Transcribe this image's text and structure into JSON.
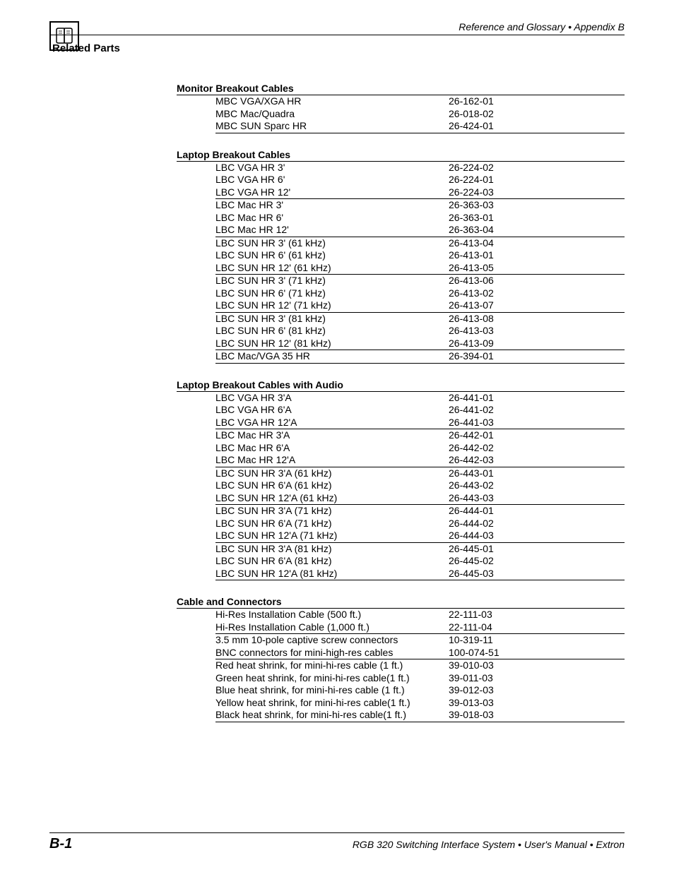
{
  "header": {
    "text": "Reference and Glossary • Appendix B"
  },
  "sectionTitle": "Related Parts",
  "tables": [
    {
      "heading": "Monitor Breakout Cables",
      "groups": [
        [
          {
            "name": "MBC VGA/XGA HR",
            "num": "26-162-01"
          },
          {
            "name": "MBC Mac/Quadra",
            "num": "26-018-02"
          },
          {
            "name": "MBC SUN Sparc HR",
            "num": "26-424-01"
          }
        ]
      ]
    },
    {
      "heading": "Laptop Breakout Cables",
      "groups": [
        [
          {
            "name": "LBC VGA HR 3'",
            "num": "26-224-02"
          },
          {
            "name": "LBC VGA HR 6'",
            "num": "26-224-01"
          },
          {
            "name": "LBC VGA HR 12'",
            "num": "26-224-03"
          }
        ],
        [
          {
            "name": "LBC Mac HR 3'",
            "num": "26-363-03"
          },
          {
            "name": "LBC Mac HR 6'",
            "num": "26-363-01"
          },
          {
            "name": "LBC Mac HR 12'",
            "num": "26-363-04"
          }
        ],
        [
          {
            "name": "LBC SUN HR 3' (61 kHz)",
            "num": "26-413-04"
          },
          {
            "name": "LBC SUN HR 6' (61 kHz)",
            "num": "26-413-01"
          },
          {
            "name": "LBC SUN HR 12' (61 kHz)",
            "num": "26-413-05"
          }
        ],
        [
          {
            "name": "LBC SUN HR 3' (71 kHz)",
            "num": "26-413-06"
          },
          {
            "name": "LBC SUN HR 6' (71 kHz)",
            "num": "26-413-02"
          },
          {
            "name": "LBC SUN HR 12' (71 kHz)",
            "num": "26-413-07"
          }
        ],
        [
          {
            "name": "LBC SUN HR 3' (81 kHz)",
            "num": "26-413-08"
          },
          {
            "name": "LBC SUN HR 6' (81 kHz)",
            "num": "26-413-03"
          },
          {
            "name": "LBC SUN HR 12' (81 kHz)",
            "num": "26-413-09"
          }
        ],
        [
          {
            "name": "LBC Mac/VGA 35 HR",
            "num": "26-394-01"
          }
        ]
      ]
    },
    {
      "heading": "Laptop Breakout Cables with Audio",
      "groups": [
        [
          {
            "name": "LBC VGA HR 3'A",
            "num": "26-441-01"
          },
          {
            "name": "LBC VGA HR 6'A",
            "num": "26-441-02"
          },
          {
            "name": "LBC VGA HR 12'A",
            "num": "26-441-03"
          }
        ],
        [
          {
            "name": "LBC Mac HR 3'A",
            "num": "26-442-01"
          },
          {
            "name": "LBC Mac HR 6'A",
            "num": "26-442-02"
          },
          {
            "name": "LBC Mac HR 12'A",
            "num": "26-442-03"
          }
        ],
        [
          {
            "name": "LBC SUN HR 3'A (61 kHz)",
            "num": "26-443-01"
          },
          {
            "name": "LBC SUN HR 6'A (61 kHz)",
            "num": "26-443-02"
          },
          {
            "name": "LBC SUN HR 12'A (61 kHz)",
            "num": "26-443-03"
          }
        ],
        [
          {
            "name": "LBC SUN HR 3'A (71 kHz)",
            "num": "26-444-01"
          },
          {
            "name": "LBC SUN HR 6'A (71 kHz)",
            "num": "26-444-02"
          },
          {
            "name": "LBC SUN HR 12'A (71 kHz)",
            "num": "26-444-03"
          }
        ],
        [
          {
            "name": "LBC SUN HR 3'A (81 kHz)",
            "num": "26-445-01"
          },
          {
            "name": "LBC SUN HR 6'A (81 kHz)",
            "num": "26-445-02"
          },
          {
            "name": "LBC SUN HR 12'A (81 kHz)",
            "num": "26-445-03"
          }
        ]
      ]
    },
    {
      "heading": "Cable and Connectors",
      "groups": [
        [
          {
            "name": "Hi-Res Installation Cable (500 ft.)",
            "num": "22-111-03"
          },
          {
            "name": "Hi-Res Installation Cable (1,000 ft.)",
            "num": "22-111-04"
          }
        ],
        [
          {
            "name": "3.5 mm 10-pole captive screw connectors",
            "num": "10-319-11"
          },
          {
            "name": "BNC connectors for mini-high-res cables",
            "num": "100-074-51"
          }
        ],
        [
          {
            "name": "Red heat shrink, for mini-hi-res cable  (1 ft.)",
            "num": "39-010-03"
          },
          {
            "name": "Green heat shrink, for mini-hi-res cable(1 ft.)",
            "num": "39-011-03"
          },
          {
            "name": "Blue heat shrink, for mini-hi-res cable  (1 ft.)",
            "num": "39-012-03"
          },
          {
            "name": "Yellow heat shrink, for mini-hi-res cable(1 ft.)",
            "num": "39-013-03"
          },
          {
            "name": "Black heat shrink, for mini-hi-res cable(1 ft.)",
            "num": "39-018-03"
          }
        ]
      ]
    }
  ],
  "footer": {
    "pageNum": "B-1",
    "text": "RGB 320 Switching Interface System • User's Manual • Extron"
  }
}
